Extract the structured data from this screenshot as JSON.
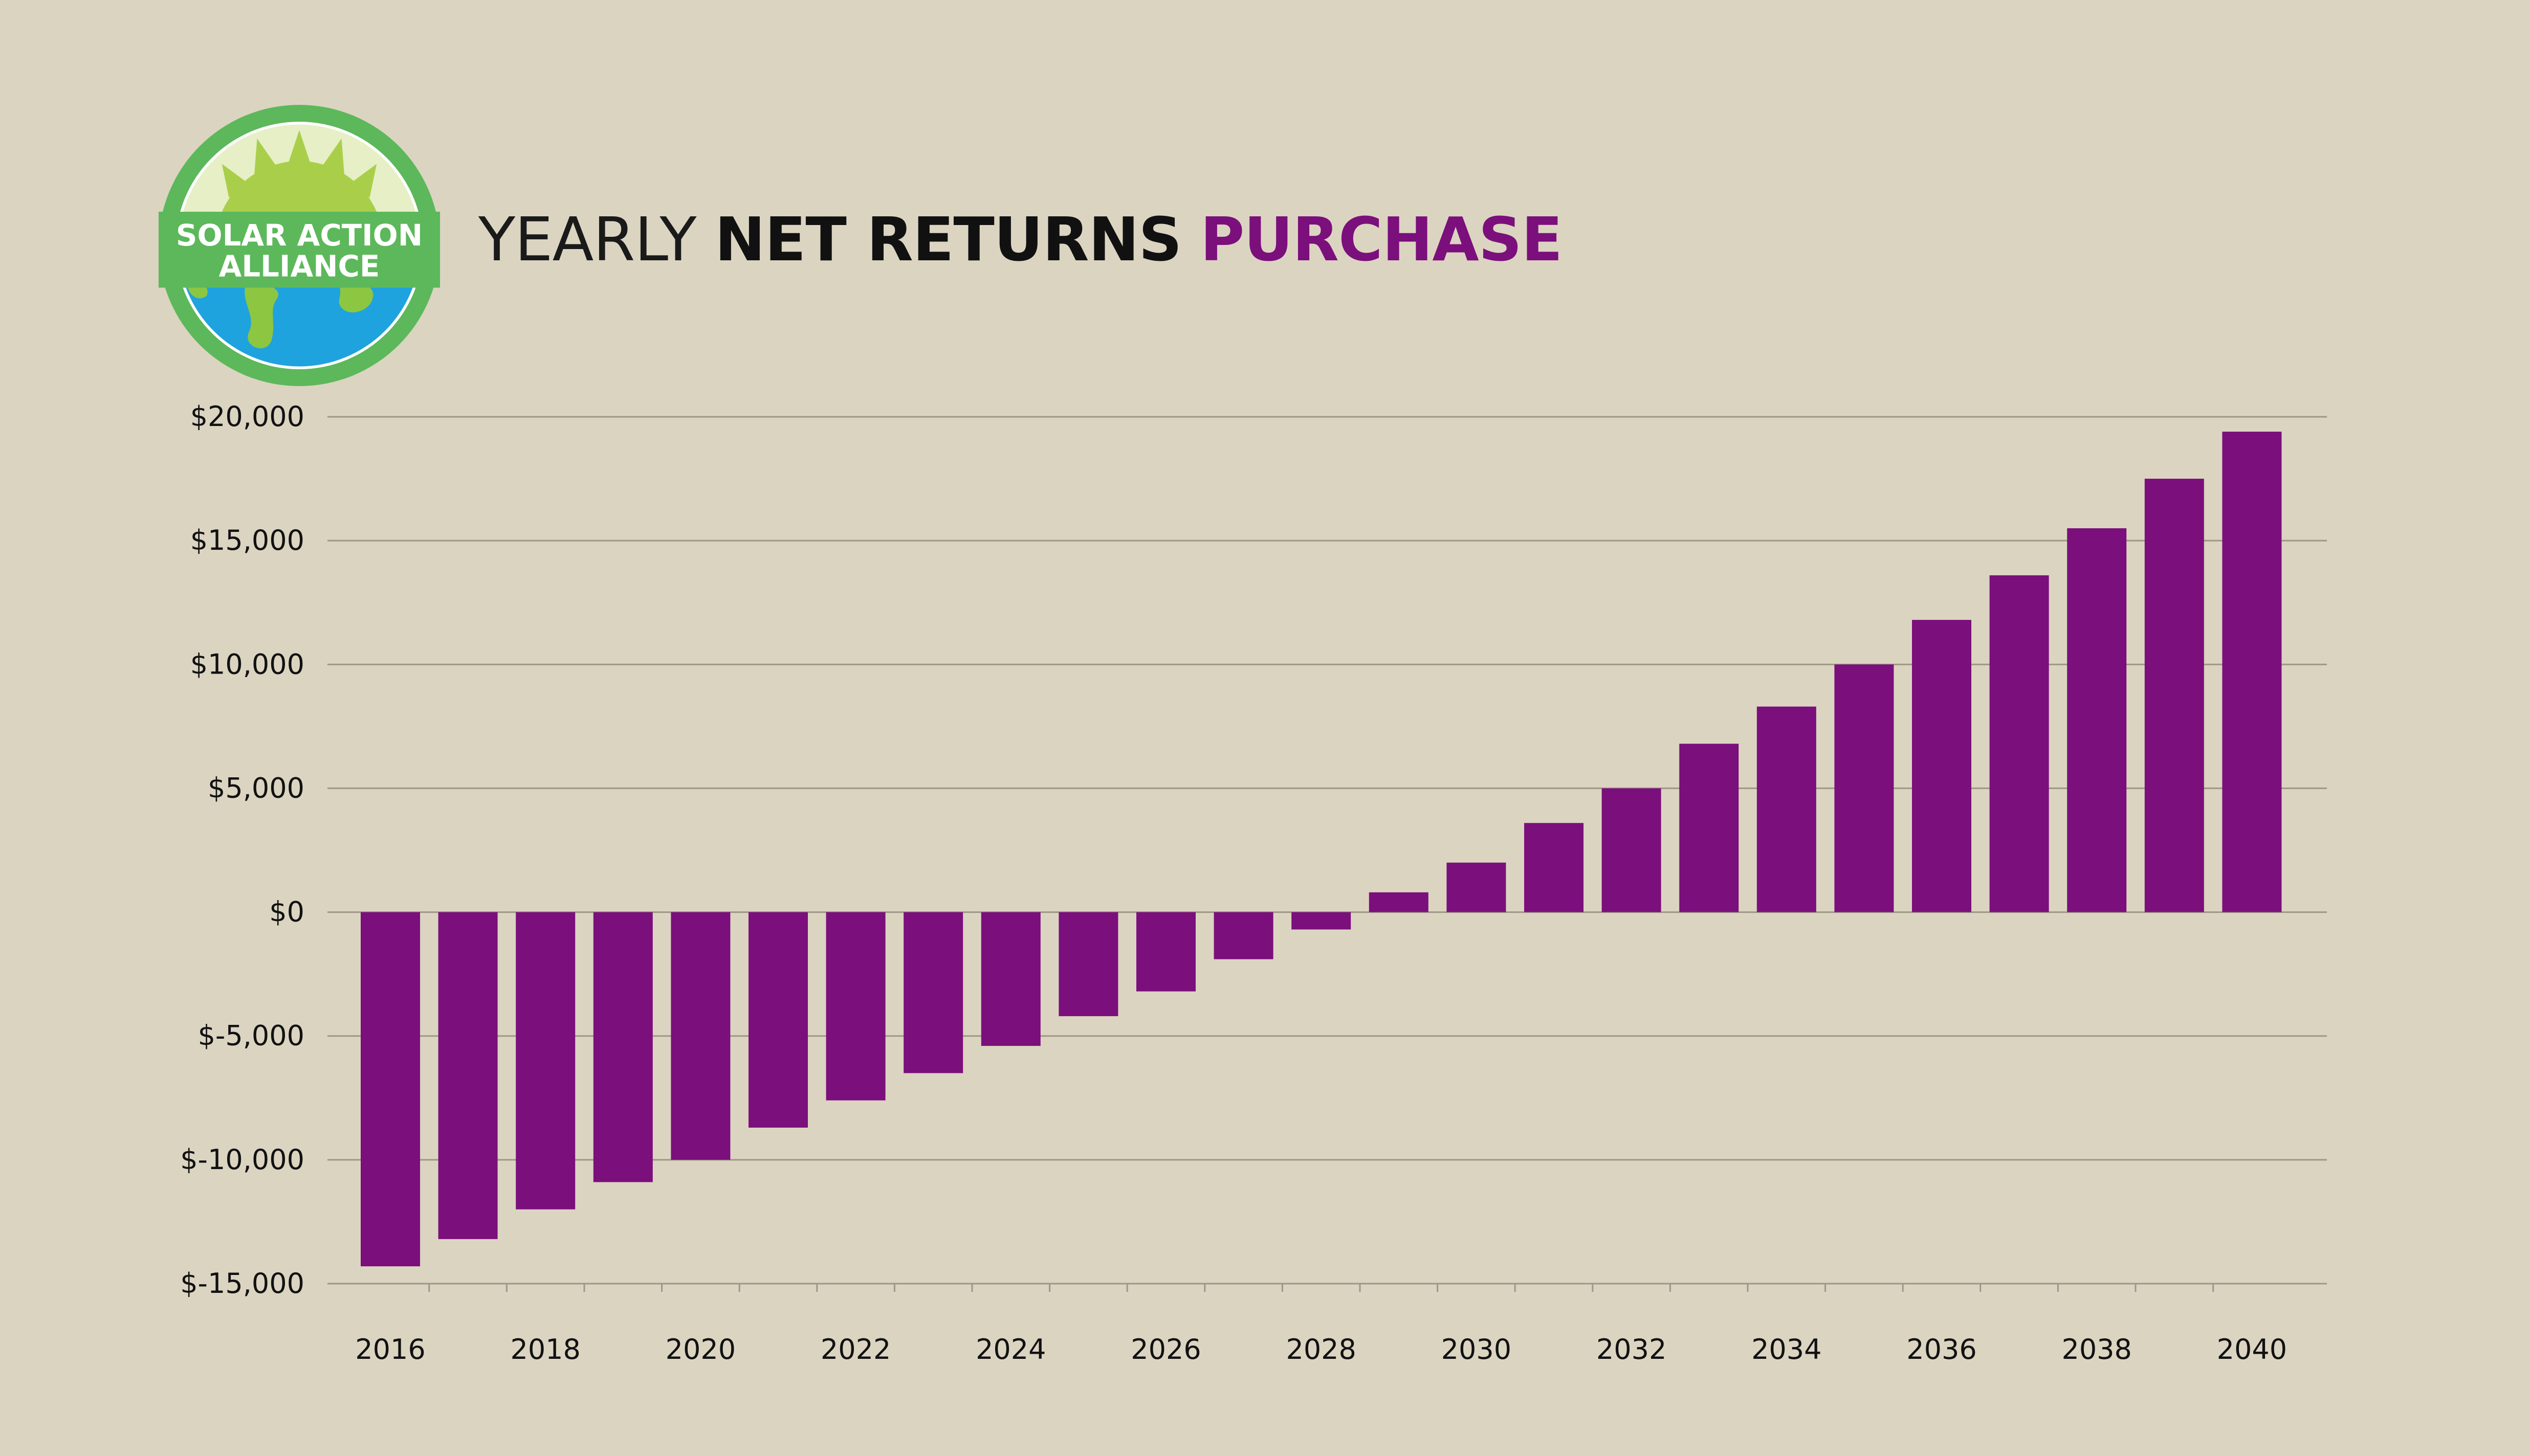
{
  "logo": {
    "line1": "SOLAR ACTION",
    "line2": "ALLIANCE",
    "colors": {
      "ring": "#5cb85a",
      "sun": "#a9cf4a",
      "globe": "#1fa3de",
      "land": "#8dc640"
    }
  },
  "title": {
    "part1": "YEARLY",
    "part2": "NET RETURNS",
    "part3": "PURCHASE"
  },
  "colors": {
    "background": "#dbd4c1",
    "bar": "#7b0f7c",
    "grid": "#9e9786",
    "accent": "#7b0f7c"
  },
  "chart_data": {
    "type": "bar",
    "title": "YEARLY NET RETURNS PURCHASE",
    "xlabel": "",
    "ylabel": "",
    "grid": true,
    "ylim": [
      -15000,
      20000
    ],
    "y_ticks": [
      20000,
      15000,
      10000,
      5000,
      0,
      -5000,
      -10000,
      -15000
    ],
    "y_tick_labels": [
      "$20,000",
      "$15,000",
      "$10,000",
      "$5,000",
      "$0",
      "$-5,000",
      "$-10,000",
      "$-15,000"
    ],
    "x_tick_labels": [
      "2016",
      "2018",
      "2020",
      "2022",
      "2024",
      "2026",
      "2028",
      "2030",
      "2032",
      "2034",
      "2036",
      "2038",
      "2040"
    ],
    "categories": [
      "2016",
      "2017",
      "2018",
      "2019",
      "2020",
      "2021",
      "2022",
      "2023",
      "2024",
      "2025",
      "2026",
      "2027",
      "2028",
      "2029",
      "2030",
      "2031",
      "2032",
      "2033",
      "2034",
      "2035",
      "2036",
      "2037",
      "2038",
      "2039",
      "2040"
    ],
    "values": [
      -14300,
      -13200,
      -12000,
      -10900,
      -10000,
      -8700,
      -7600,
      -6500,
      -5400,
      -4200,
      -3200,
      -1900,
      -700,
      800,
      2000,
      3600,
      5000,
      6800,
      8300,
      10000,
      11800,
      13600,
      15500,
      17500,
      19400
    ]
  }
}
